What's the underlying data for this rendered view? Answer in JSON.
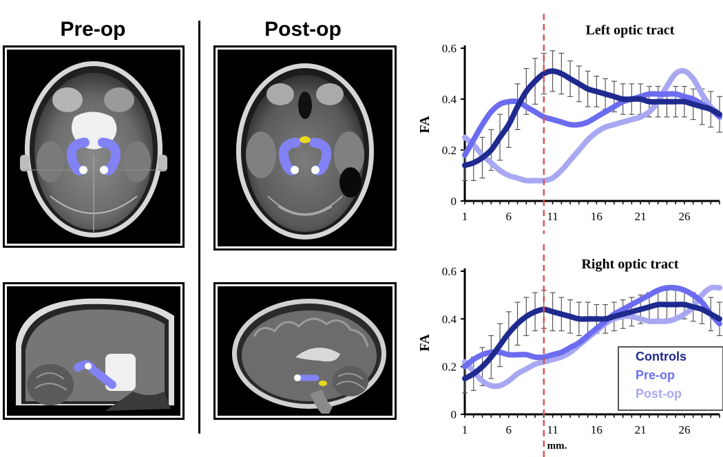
{
  "headers": {
    "left": "Pre-op",
    "right": "Post-op"
  },
  "colors": {
    "controls": "#1f2a8f",
    "preop": "#6c6cf0",
    "postop": "#a8a8f2",
    "marker": "#d9534f",
    "errorbar": "#555555"
  },
  "panels": [
    {
      "name": "axial-preop",
      "view": "axial",
      "condition": "pre-op"
    },
    {
      "name": "axial-postop",
      "view": "axial",
      "condition": "post-op"
    },
    {
      "name": "sagittal-preop",
      "view": "sagittal",
      "condition": "pre-op"
    },
    {
      "name": "sagittal-postop",
      "view": "sagittal",
      "condition": "post-op"
    }
  ],
  "chart_data": [
    {
      "type": "line",
      "title": "Left optic tract",
      "ylabel": "FA",
      "xlabel": "",
      "ylim": [
        0,
        0.6
      ],
      "xlim": [
        1,
        30
      ],
      "xticks": [
        "1",
        "6",
        "11",
        "16",
        "21",
        "26"
      ],
      "yticks": [
        "0",
        "0.2",
        "0.4",
        "0.6"
      ],
      "marker_x": 10,
      "x": [
        1,
        2,
        3,
        4,
        5,
        6,
        7,
        8,
        9,
        10,
        11,
        12,
        13,
        14,
        15,
        16,
        17,
        18,
        19,
        20,
        21,
        22,
        23,
        24,
        25,
        26,
        27,
        28,
        29,
        30
      ],
      "series": [
        {
          "name": "Controls",
          "values": [
            0.14,
            0.15,
            0.17,
            0.2,
            0.25,
            0.3,
            0.37,
            0.43,
            0.47,
            0.5,
            0.51,
            0.5,
            0.48,
            0.46,
            0.44,
            0.43,
            0.42,
            0.41,
            0.4,
            0.4,
            0.4,
            0.39,
            0.39,
            0.39,
            0.39,
            0.39,
            0.38,
            0.37,
            0.36,
            0.34
          ],
          "error": [
            0.06,
            0.07,
            0.08,
            0.08,
            0.09,
            0.09,
            0.09,
            0.09,
            0.09,
            0.08,
            0.08,
            0.08,
            0.07,
            0.07,
            0.07,
            0.06,
            0.06,
            0.06,
            0.06,
            0.06,
            0.06,
            0.06,
            0.06,
            0.06,
            0.06,
            0.06,
            0.06,
            0.07,
            0.07,
            0.07
          ]
        },
        {
          "name": "Pre-op",
          "values": [
            0.18,
            0.24,
            0.3,
            0.35,
            0.38,
            0.39,
            0.39,
            0.37,
            0.35,
            0.33,
            0.32,
            0.31,
            0.3,
            0.3,
            0.31,
            0.33,
            0.35,
            0.37,
            0.39,
            0.4,
            0.41,
            0.42,
            0.42,
            0.42,
            0.42,
            0.41,
            0.4,
            0.38,
            0.36,
            0.33
          ]
        },
        {
          "name": "Post-op",
          "values": [
            0.25,
            0.22,
            0.18,
            0.15,
            0.12,
            0.1,
            0.09,
            0.08,
            0.08,
            0.08,
            0.09,
            0.12,
            0.16,
            0.2,
            0.24,
            0.27,
            0.29,
            0.3,
            0.31,
            0.32,
            0.33,
            0.35,
            0.39,
            0.45,
            0.5,
            0.51,
            0.48,
            0.42,
            0.37,
            0.34
          ]
        }
      ]
    },
    {
      "type": "line",
      "title": "Right optic tract",
      "ylabel": "FA",
      "xlabel": "mm.",
      "ylim": [
        0,
        0.6
      ],
      "xlim": [
        1,
        30
      ],
      "xticks": [
        "1",
        "6",
        "11",
        "16",
        "21",
        "26"
      ],
      "yticks": [
        "0",
        "0.2",
        "0.4",
        "0.6"
      ],
      "marker_x": 10,
      "legend": "bottom-right",
      "x": [
        1,
        2,
        3,
        4,
        5,
        6,
        7,
        8,
        9,
        10,
        11,
        12,
        13,
        14,
        15,
        16,
        17,
        18,
        19,
        20,
        21,
        22,
        23,
        24,
        25,
        26,
        27,
        28,
        29,
        30
      ],
      "series": [
        {
          "name": "Controls",
          "values": [
            0.15,
            0.17,
            0.2,
            0.24,
            0.29,
            0.34,
            0.38,
            0.41,
            0.43,
            0.44,
            0.43,
            0.42,
            0.41,
            0.4,
            0.4,
            0.4,
            0.4,
            0.41,
            0.42,
            0.43,
            0.44,
            0.45,
            0.46,
            0.46,
            0.46,
            0.46,
            0.45,
            0.44,
            0.42,
            0.4
          ],
          "error": [
            0.06,
            0.07,
            0.08,
            0.09,
            0.09,
            0.09,
            0.09,
            0.08,
            0.08,
            0.08,
            0.08,
            0.07,
            0.07,
            0.07,
            0.07,
            0.06,
            0.06,
            0.06,
            0.06,
            0.06,
            0.06,
            0.06,
            0.06,
            0.06,
            0.06,
            0.06,
            0.06,
            0.06,
            0.07,
            0.07
          ]
        },
        {
          "name": "Pre-op",
          "values": [
            0.2,
            0.23,
            0.25,
            0.26,
            0.26,
            0.25,
            0.25,
            0.25,
            0.24,
            0.24,
            0.25,
            0.26,
            0.28,
            0.3,
            0.33,
            0.36,
            0.39,
            0.42,
            0.44,
            0.46,
            0.48,
            0.5,
            0.52,
            0.53,
            0.53,
            0.52,
            0.5,
            0.47,
            0.42,
            0.38
          ]
        },
        {
          "name": "Post-op",
          "values": [
            0.22,
            0.18,
            0.14,
            0.12,
            0.12,
            0.14,
            0.17,
            0.19,
            0.21,
            0.22,
            0.23,
            0.24,
            0.26,
            0.29,
            0.32,
            0.35,
            0.38,
            0.4,
            0.41,
            0.41,
            0.4,
            0.39,
            0.39,
            0.39,
            0.4,
            0.42,
            0.45,
            0.5,
            0.53,
            0.53
          ]
        }
      ]
    }
  ]
}
